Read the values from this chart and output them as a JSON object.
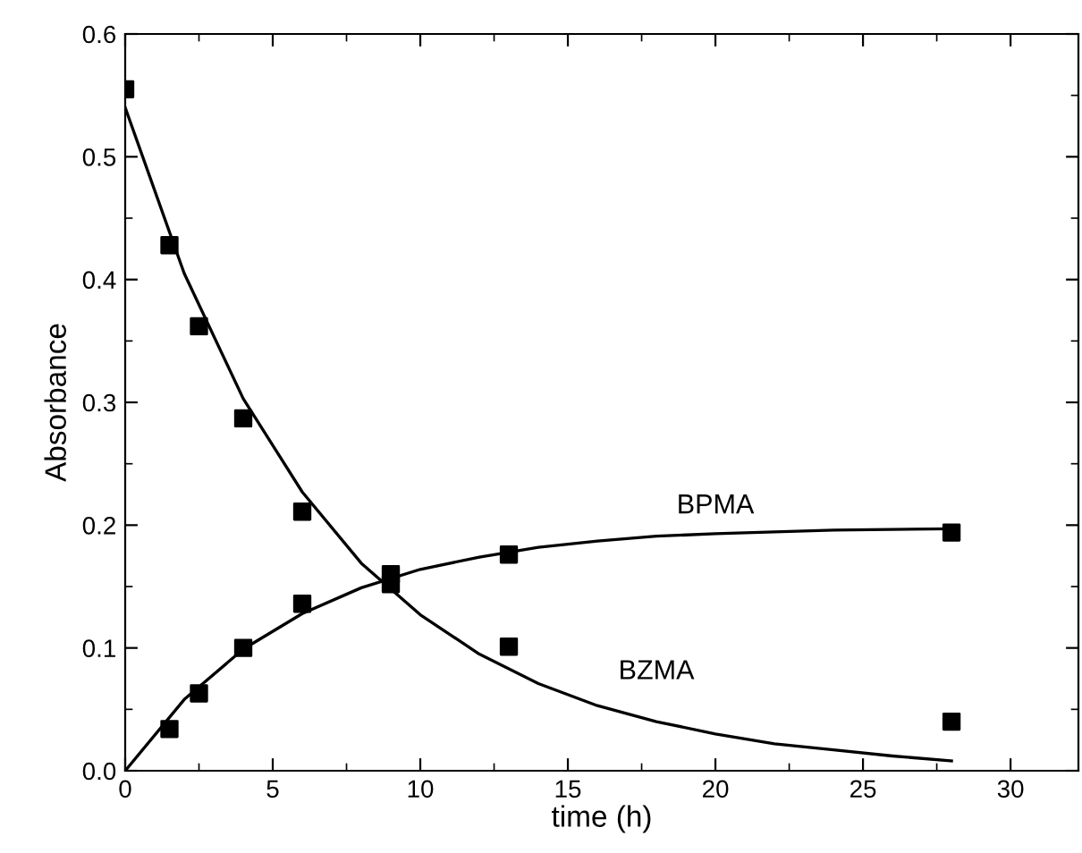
{
  "chart_data": {
    "type": "line",
    "xlabel": "time (h)",
    "ylabel": "Absorbance",
    "xlim": [
      0,
      32.3
    ],
    "ylim": [
      0,
      0.6
    ],
    "xticks": [
      0,
      5,
      10,
      15,
      20,
      25,
      30
    ],
    "yticks": [
      {
        "value": 0,
        "label": "0.0"
      },
      0.1,
      0.2,
      0.3,
      0.4,
      0.5,
      0.6
    ],
    "grid": false,
    "legend": false,
    "series": [
      {
        "type": "scatter",
        "marker": "square",
        "color": "#000000",
        "x": [
          0,
          1.5,
          2.5,
          4,
          6,
          9,
          13,
          28
        ],
        "values": [
          0.555,
          0.428,
          0.362,
          0.287,
          0.211,
          0.152,
          0.101,
          0.04
        ]
      },
      {
        "type": "scatter",
        "marker": "square",
        "color": "#000000",
        "x": [
          1.5,
          2.5,
          4,
          6,
          9,
          13,
          28
        ],
        "values": [
          0.034,
          0.063,
          0.1,
          0.136,
          0.16,
          0.176,
          0.194
        ]
      },
      {
        "name": "BZMA",
        "color": "#000000",
        "x": [
          0,
          2,
          4,
          6,
          8,
          10,
          12,
          14,
          16,
          18,
          20,
          22,
          24,
          26,
          28
        ],
        "values": [
          0.54,
          0.405,
          0.303,
          0.227,
          0.169,
          0.127,
          0.095,
          0.071,
          0.053,
          0.04,
          0.03,
          0.022,
          0.017,
          0.012,
          0.008
        ]
      },
      {
        "name": "BPMA",
        "color": "#000000",
        "x": [
          0,
          2,
          4,
          6,
          8,
          10,
          12,
          14,
          16,
          18,
          20,
          24,
          28
        ],
        "values": [
          0,
          0.058,
          0.099,
          0.128,
          0.149,
          0.164,
          0.174,
          0.182,
          0.187,
          0.191,
          0.193,
          0.196,
          0.197
        ]
      }
    ]
  }
}
